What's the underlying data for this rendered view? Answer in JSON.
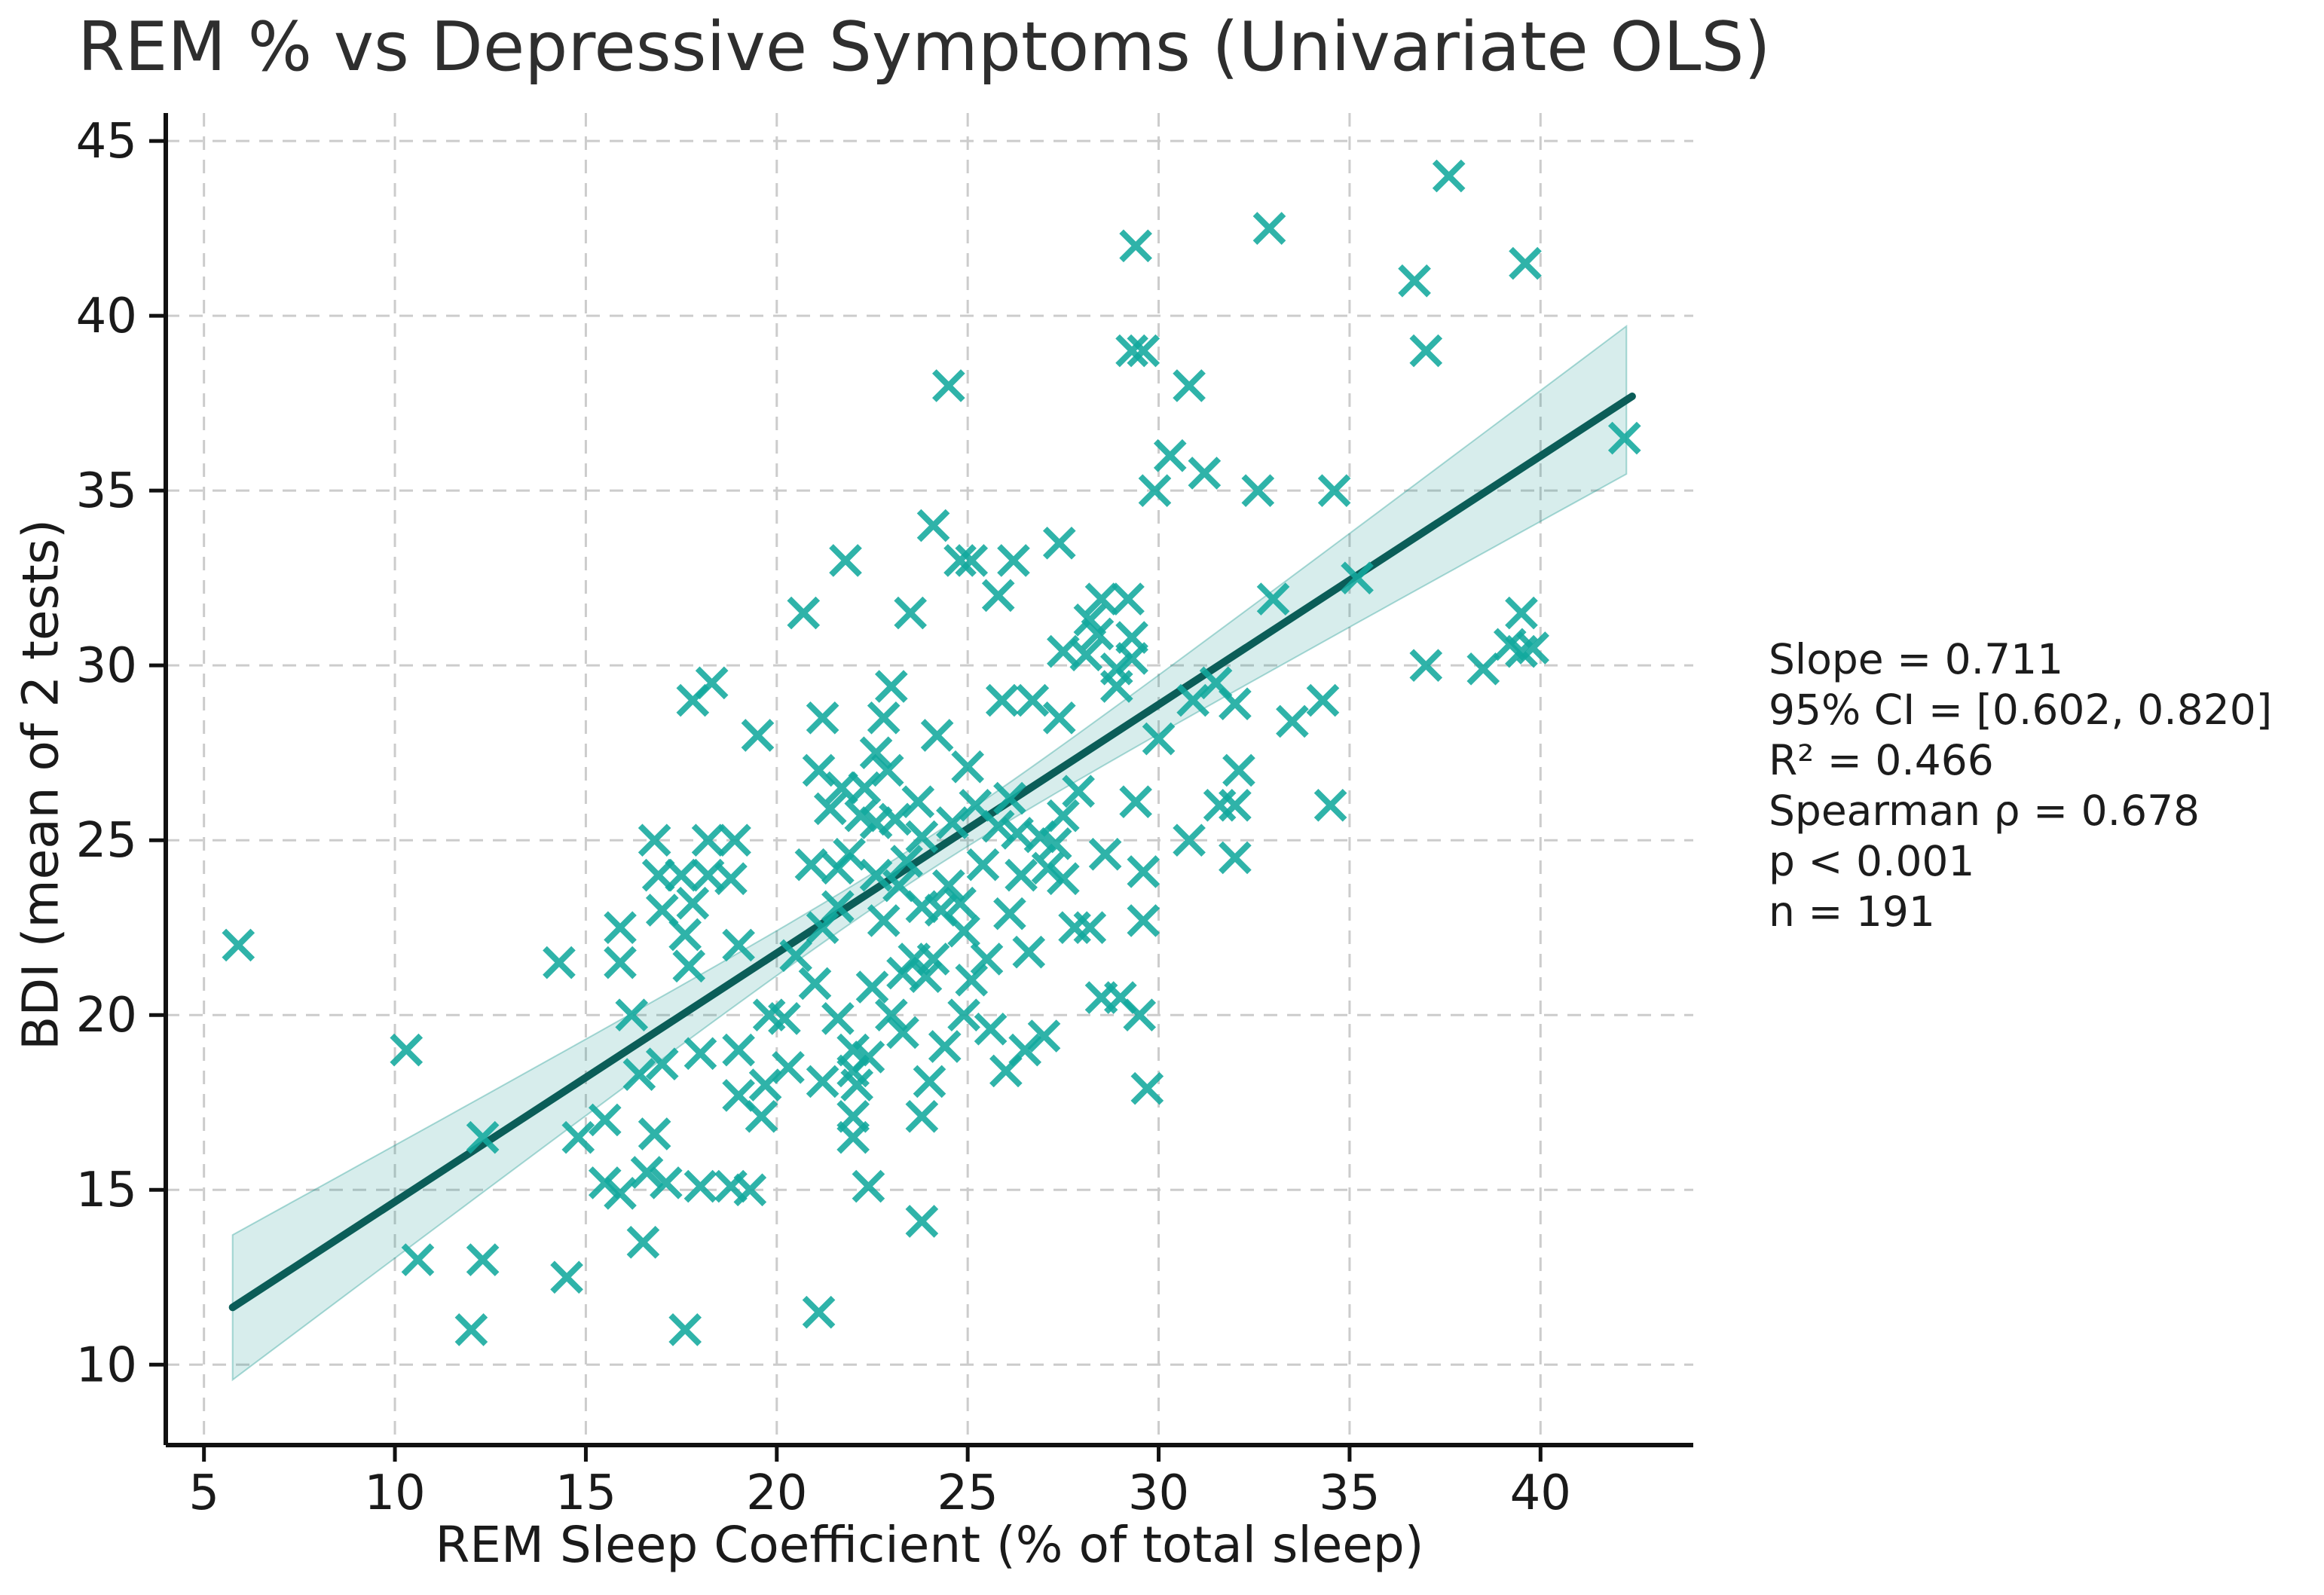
{
  "title": "REM % vs Depressive Symptoms (Univariate OLS)",
  "axes": {
    "xlabel": "REM Sleep Coefficient (% of total sleep)",
    "ylabel": "BDI (mean of 2 tests)"
  },
  "annotation": {
    "lines": [
      "Slope = 0.711",
      "95% CI = [0.602, 0.820]",
      "R² = 0.466",
      "Spearman ρ = 0.678",
      "p < 0.001",
      "n = 191"
    ]
  },
  "chart_data": {
    "type": "scatter",
    "title": "REM % vs Depressive Symptoms (Univariate OLS)",
    "xlabel": "REM Sleep Coefficient (% of total sleep)",
    "ylabel": "BDI (mean of 2 tests)",
    "xlim": [
      4.0,
      44.0
    ],
    "ylim": [
      7.7,
      45.8
    ],
    "xticks": [
      5,
      10,
      15,
      20,
      25,
      30,
      35,
      40
    ],
    "yticks": [
      10,
      15,
      20,
      25,
      30,
      35,
      40,
      45
    ],
    "grid": true,
    "marker": "x",
    "regression": {
      "slope": 0.711,
      "intercept": 7.55,
      "x_start": 5.75,
      "x_end": 42.4,
      "ci_half_width_at_center": 0.48,
      "ci_center_x": 23.8,
      "ci_spread_scale": 4.3
    },
    "stats": {
      "slope": 0.711,
      "ci_low": 0.602,
      "ci_high": 0.82,
      "r_squared": 0.466,
      "spearman_rho": 0.678,
      "p": "< 0.001",
      "n": 191
    },
    "colors": {
      "marker": "#12a89d",
      "line": "#0b5d58",
      "band": "rgba(18,150,140,0.17)",
      "band_edge": "rgba(18,150,140,0.35)",
      "grid": "#cccccc",
      "spine": "#111111",
      "text": "#1a1a1a"
    },
    "points": [
      [
        29.4,
        42
      ],
      [
        29.3,
        39
      ],
      [
        29.6,
        39
      ],
      [
        24.5,
        38
      ],
      [
        30.8,
        38
      ],
      [
        30.3,
        36
      ],
      [
        31.2,
        35.5
      ],
      [
        29.9,
        35
      ],
      [
        24.1,
        34
      ],
      [
        27.4,
        33.5
      ],
      [
        24.8,
        33
      ],
      [
        25.1,
        33
      ],
      [
        26.2,
        33
      ],
      [
        21.8,
        33
      ],
      [
        37.6,
        44
      ],
      [
        32.9,
        42.5
      ],
      [
        39.6,
        41.5
      ],
      [
        36.7,
        41
      ],
      [
        37,
        39
      ],
      [
        42.2,
        36.5
      ],
      [
        32.6,
        35
      ],
      [
        34.6,
        35
      ],
      [
        35.2,
        32.5
      ],
      [
        5.9,
        22
      ],
      [
        16.8,
        25
      ],
      [
        16.9,
        24
      ],
      [
        17.5,
        24
      ],
      [
        17,
        23
      ],
      [
        15.9,
        22.5
      ],
      [
        14.3,
        21.5
      ],
      [
        15.9,
        21.5
      ],
      [
        16.2,
        20
      ],
      [
        10.3,
        19
      ],
      [
        17.6,
        22.3
      ],
      [
        17.7,
        21.4
      ],
      [
        20.7,
        31.5
      ],
      [
        23.5,
        31.5
      ],
      [
        25.8,
        32
      ],
      [
        19.5,
        28
      ],
      [
        21.2,
        28.5
      ],
      [
        22.8,
        28.5
      ],
      [
        24.2,
        28
      ],
      [
        25.9,
        29
      ],
      [
        26.7,
        29
      ],
      [
        27.4,
        28.5
      ],
      [
        17.8,
        29
      ],
      [
        18.3,
        29.5
      ],
      [
        22.6,
        27.5
      ],
      [
        21.1,
        27
      ],
      [
        22.9,
        27
      ],
      [
        21.7,
        26.5
      ],
      [
        22.3,
        26.5
      ],
      [
        22.2,
        25.7
      ],
      [
        22.6,
        25.5
      ],
      [
        23.1,
        25.6
      ],
      [
        23.7,
        26.1
      ],
      [
        25.2,
        26
      ],
      [
        25.8,
        25.4
      ],
      [
        26.3,
        25.2
      ],
      [
        26.9,
        25.1
      ],
      [
        27.3,
        24.9
      ],
      [
        27.5,
        30.4
      ],
      [
        28.1,
        30.3
      ],
      [
        28.2,
        31.3
      ],
      [
        28.4,
        30.9
      ],
      [
        28.5,
        31.9
      ],
      [
        29.2,
        31.9
      ],
      [
        29.3,
        30.8
      ],
      [
        29.3,
        30.2
      ],
      [
        28.9,
        29.9
      ],
      [
        28.9,
        29.4
      ],
      [
        30.9,
        29
      ],
      [
        31.5,
        29.5
      ],
      [
        30,
        27.9
      ],
      [
        18.2,
        25
      ],
      [
        18.9,
        25
      ],
      [
        18.2,
        24
      ],
      [
        18.8,
        23.9
      ],
      [
        21.6,
        24.2
      ],
      [
        21.9,
        24.6
      ],
      [
        22.6,
        24
      ],
      [
        23.2,
        23.7
      ],
      [
        23.8,
        23.1
      ],
      [
        24.3,
        23
      ],
      [
        24.8,
        23.2
      ],
      [
        24.5,
        23.7
      ],
      [
        27.1,
        24.2
      ],
      [
        27.5,
        23.9
      ],
      [
        29.6,
        24.1
      ],
      [
        29.6,
        22.7
      ],
      [
        23.6,
        21.6
      ],
      [
        24.1,
        21.6
      ],
      [
        23.3,
        21.2
      ],
      [
        23.9,
        21.1
      ],
      [
        21.2,
        22.5
      ],
      [
        21.6,
        23.1
      ],
      [
        19,
        22
      ],
      [
        17.8,
        23.2
      ],
      [
        25.5,
        21.6
      ],
      [
        25.1,
        21
      ],
      [
        27.8,
        22.5
      ],
      [
        28.2,
        22.5
      ],
      [
        28.5,
        20.5
      ],
      [
        29,
        20.5
      ],
      [
        29.5,
        20
      ],
      [
        29.7,
        17.9
      ],
      [
        26,
        18.4
      ],
      [
        26.5,
        19
      ],
      [
        27,
        19.4
      ],
      [
        29.4,
        26.1
      ],
      [
        30.8,
        25
      ],
      [
        26.1,
        26.2
      ],
      [
        23.8,
        25.1
      ],
      [
        27.5,
        25.7
      ],
      [
        19.8,
        20
      ],
      [
        20.2,
        19.9
      ],
      [
        21.6,
        19.9
      ],
      [
        23,
        20
      ],
      [
        24.9,
        20
      ],
      [
        19,
        19
      ],
      [
        18,
        18.9
      ],
      [
        22,
        19
      ],
      [
        22.4,
        18.8
      ],
      [
        22,
        18.4
      ],
      [
        22.1,
        18
      ],
      [
        21.2,
        18.1
      ],
      [
        24,
        18.1
      ],
      [
        19.7,
        18
      ],
      [
        19,
        17.7
      ],
      [
        19.6,
        17.1
      ],
      [
        22,
        17.1
      ],
      [
        22,
        16.5
      ],
      [
        23.8,
        17.1
      ],
      [
        18,
        15.1
      ],
      [
        18.8,
        15.1
      ],
      [
        19.3,
        15
      ],
      [
        22.4,
        15.1
      ],
      [
        23.8,
        14.1
      ],
      [
        21.1,
        11.5
      ],
      [
        16.4,
        18.3
      ],
      [
        17,
        18.6
      ],
      [
        12.3,
        16.5
      ],
      [
        10.6,
        13
      ],
      [
        12.3,
        13
      ],
      [
        14.5,
        12.5
      ],
      [
        12,
        11
      ],
      [
        16.5,
        13.5
      ],
      [
        17.6,
        11
      ],
      [
        15.5,
        15.2
      ],
      [
        15.9,
        14.9
      ],
      [
        15.5,
        17
      ],
      [
        14.8,
        16.5
      ],
      [
        16.8,
        16.6
      ],
      [
        16.6,
        15.5
      ],
      [
        17.1,
        15.2
      ],
      [
        33,
        31.9
      ],
      [
        39.5,
        31.5
      ],
      [
        38.5,
        29.9
      ],
      [
        39.2,
        30.6
      ],
      [
        39.5,
        30.4
      ],
      [
        39.8,
        30.5
      ],
      [
        37,
        30
      ],
      [
        32,
        28.9
      ],
      [
        33.5,
        28.4
      ],
      [
        34.3,
        29
      ],
      [
        32.1,
        27
      ],
      [
        31.6,
        26
      ],
      [
        32,
        26
      ],
      [
        34.5,
        26
      ],
      [
        32,
        24.5
      ],
      [
        20.9,
        24.3
      ],
      [
        21.4,
        25.9
      ],
      [
        22.8,
        22.7
      ],
      [
        23.4,
        24.4
      ],
      [
        24.6,
        25.5
      ],
      [
        25.4,
        24.3
      ],
      [
        26.4,
        24
      ],
      [
        24.9,
        22.4
      ],
      [
        26.1,
        22.9
      ],
      [
        22.5,
        20.8
      ],
      [
        20.5,
        21.7
      ],
      [
        23.3,
        19.5
      ],
      [
        25.6,
        19.6
      ],
      [
        24.4,
        19.1
      ],
      [
        20.3,
        18.5
      ],
      [
        21,
        20.9
      ],
      [
        26.6,
        21.8
      ],
      [
        27.9,
        26.4
      ],
      [
        28.6,
        24.6
      ],
      [
        25,
        27.1
      ],
      [
        23,
        29.4
      ]
    ]
  }
}
